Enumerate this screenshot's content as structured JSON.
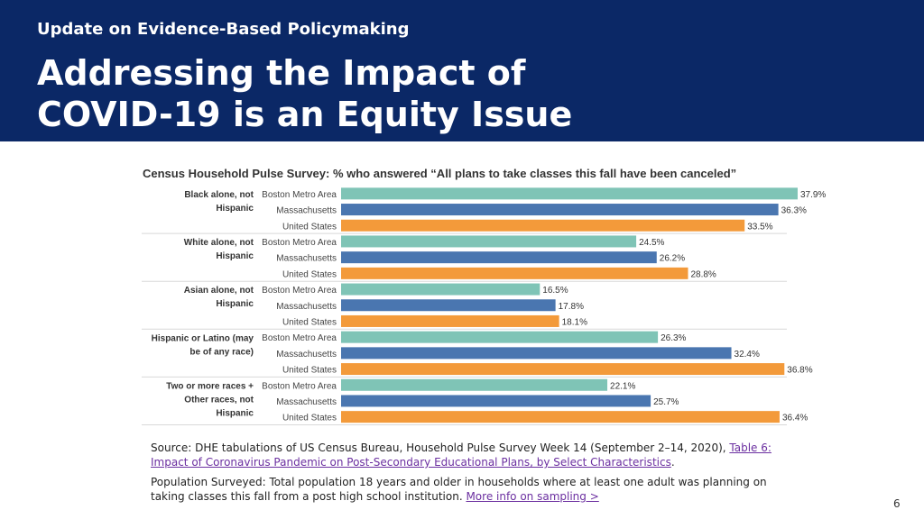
{
  "header": {
    "subtitle": "Update on Evidence-Based Policymaking",
    "title": "Addressing the Impact of COVID-19 is an Equity Issue"
  },
  "chart_data": {
    "type": "bar",
    "orientation": "horizontal",
    "title": "Census Household Pulse Survey: % who answered “All plans to take classes this fall have been canceled”",
    "unit": "%",
    "xlim": [
      0,
      40
    ],
    "series_colors": {
      "Boston Metro Area": "#7fc4b6",
      "Massachusetts": "#4a76b0",
      "United States": "#f39a3a"
    },
    "groups": [
      {
        "label_lines": [
          "Black alone, not",
          "Hispanic"
        ],
        "bars": [
          {
            "series": "Boston Metro Area",
            "value": 37.9,
            "label": "37.9%"
          },
          {
            "series": "Massachusetts",
            "value": 36.3,
            "label": "36.3%"
          },
          {
            "series": "United States",
            "value": 33.5,
            "label": "33.5%"
          }
        ]
      },
      {
        "label_lines": [
          "White alone, not",
          "Hispanic"
        ],
        "bars": [
          {
            "series": "Boston Metro Area",
            "value": 24.5,
            "label": "24.5%"
          },
          {
            "series": "Massachusetts",
            "value": 26.2,
            "label": "26.2%"
          },
          {
            "series": "United States",
            "value": 28.8,
            "label": "28.8%"
          }
        ]
      },
      {
        "label_lines": [
          "Asian alone, not",
          "Hispanic"
        ],
        "bars": [
          {
            "series": "Boston Metro Area",
            "value": 16.5,
            "label": "16.5%"
          },
          {
            "series": "Massachusetts",
            "value": 17.8,
            "label": "17.8%"
          },
          {
            "series": "United States",
            "value": 18.1,
            "label": "18.1%"
          }
        ]
      },
      {
        "label_lines": [
          "Hispanic or Latino (may",
          "be of any race)"
        ],
        "bars": [
          {
            "series": "Boston Metro Area",
            "value": 26.3,
            "label": "26.3%"
          },
          {
            "series": "Massachusetts",
            "value": 32.4,
            "label": "32.4%"
          },
          {
            "series": "United States",
            "value": 36.8,
            "label": "36.8%"
          }
        ]
      },
      {
        "label_lines": [
          "Two or more races +",
          "Other races, not",
          "Hispanic"
        ],
        "bars": [
          {
            "series": "Boston Metro Area",
            "value": 22.1,
            "label": "22.1%"
          },
          {
            "series": "Massachusetts",
            "value": 25.7,
            "label": "25.7%"
          },
          {
            "series": "United States",
            "value": 36.4,
            "label": "36.4%"
          }
        ]
      }
    ]
  },
  "source": {
    "line1_prefix": "Source: DHE tabulations of US Census Bureau, Household Pulse Survey Week 14 (September 2–14, 2020), ",
    "line1_link": "Table 6: Impact of Coronavirus Pandemic on Post-Secondary Educational Plans, by Select Characteristics",
    "line1_suffix": ".",
    "line2_prefix": "Population Surveyed: Total population 18 years and older in households where at least one adult was planning on taking classes this fall from a post high school institution. ",
    "line2_link": "More info on sampling >"
  },
  "page_number": "6"
}
